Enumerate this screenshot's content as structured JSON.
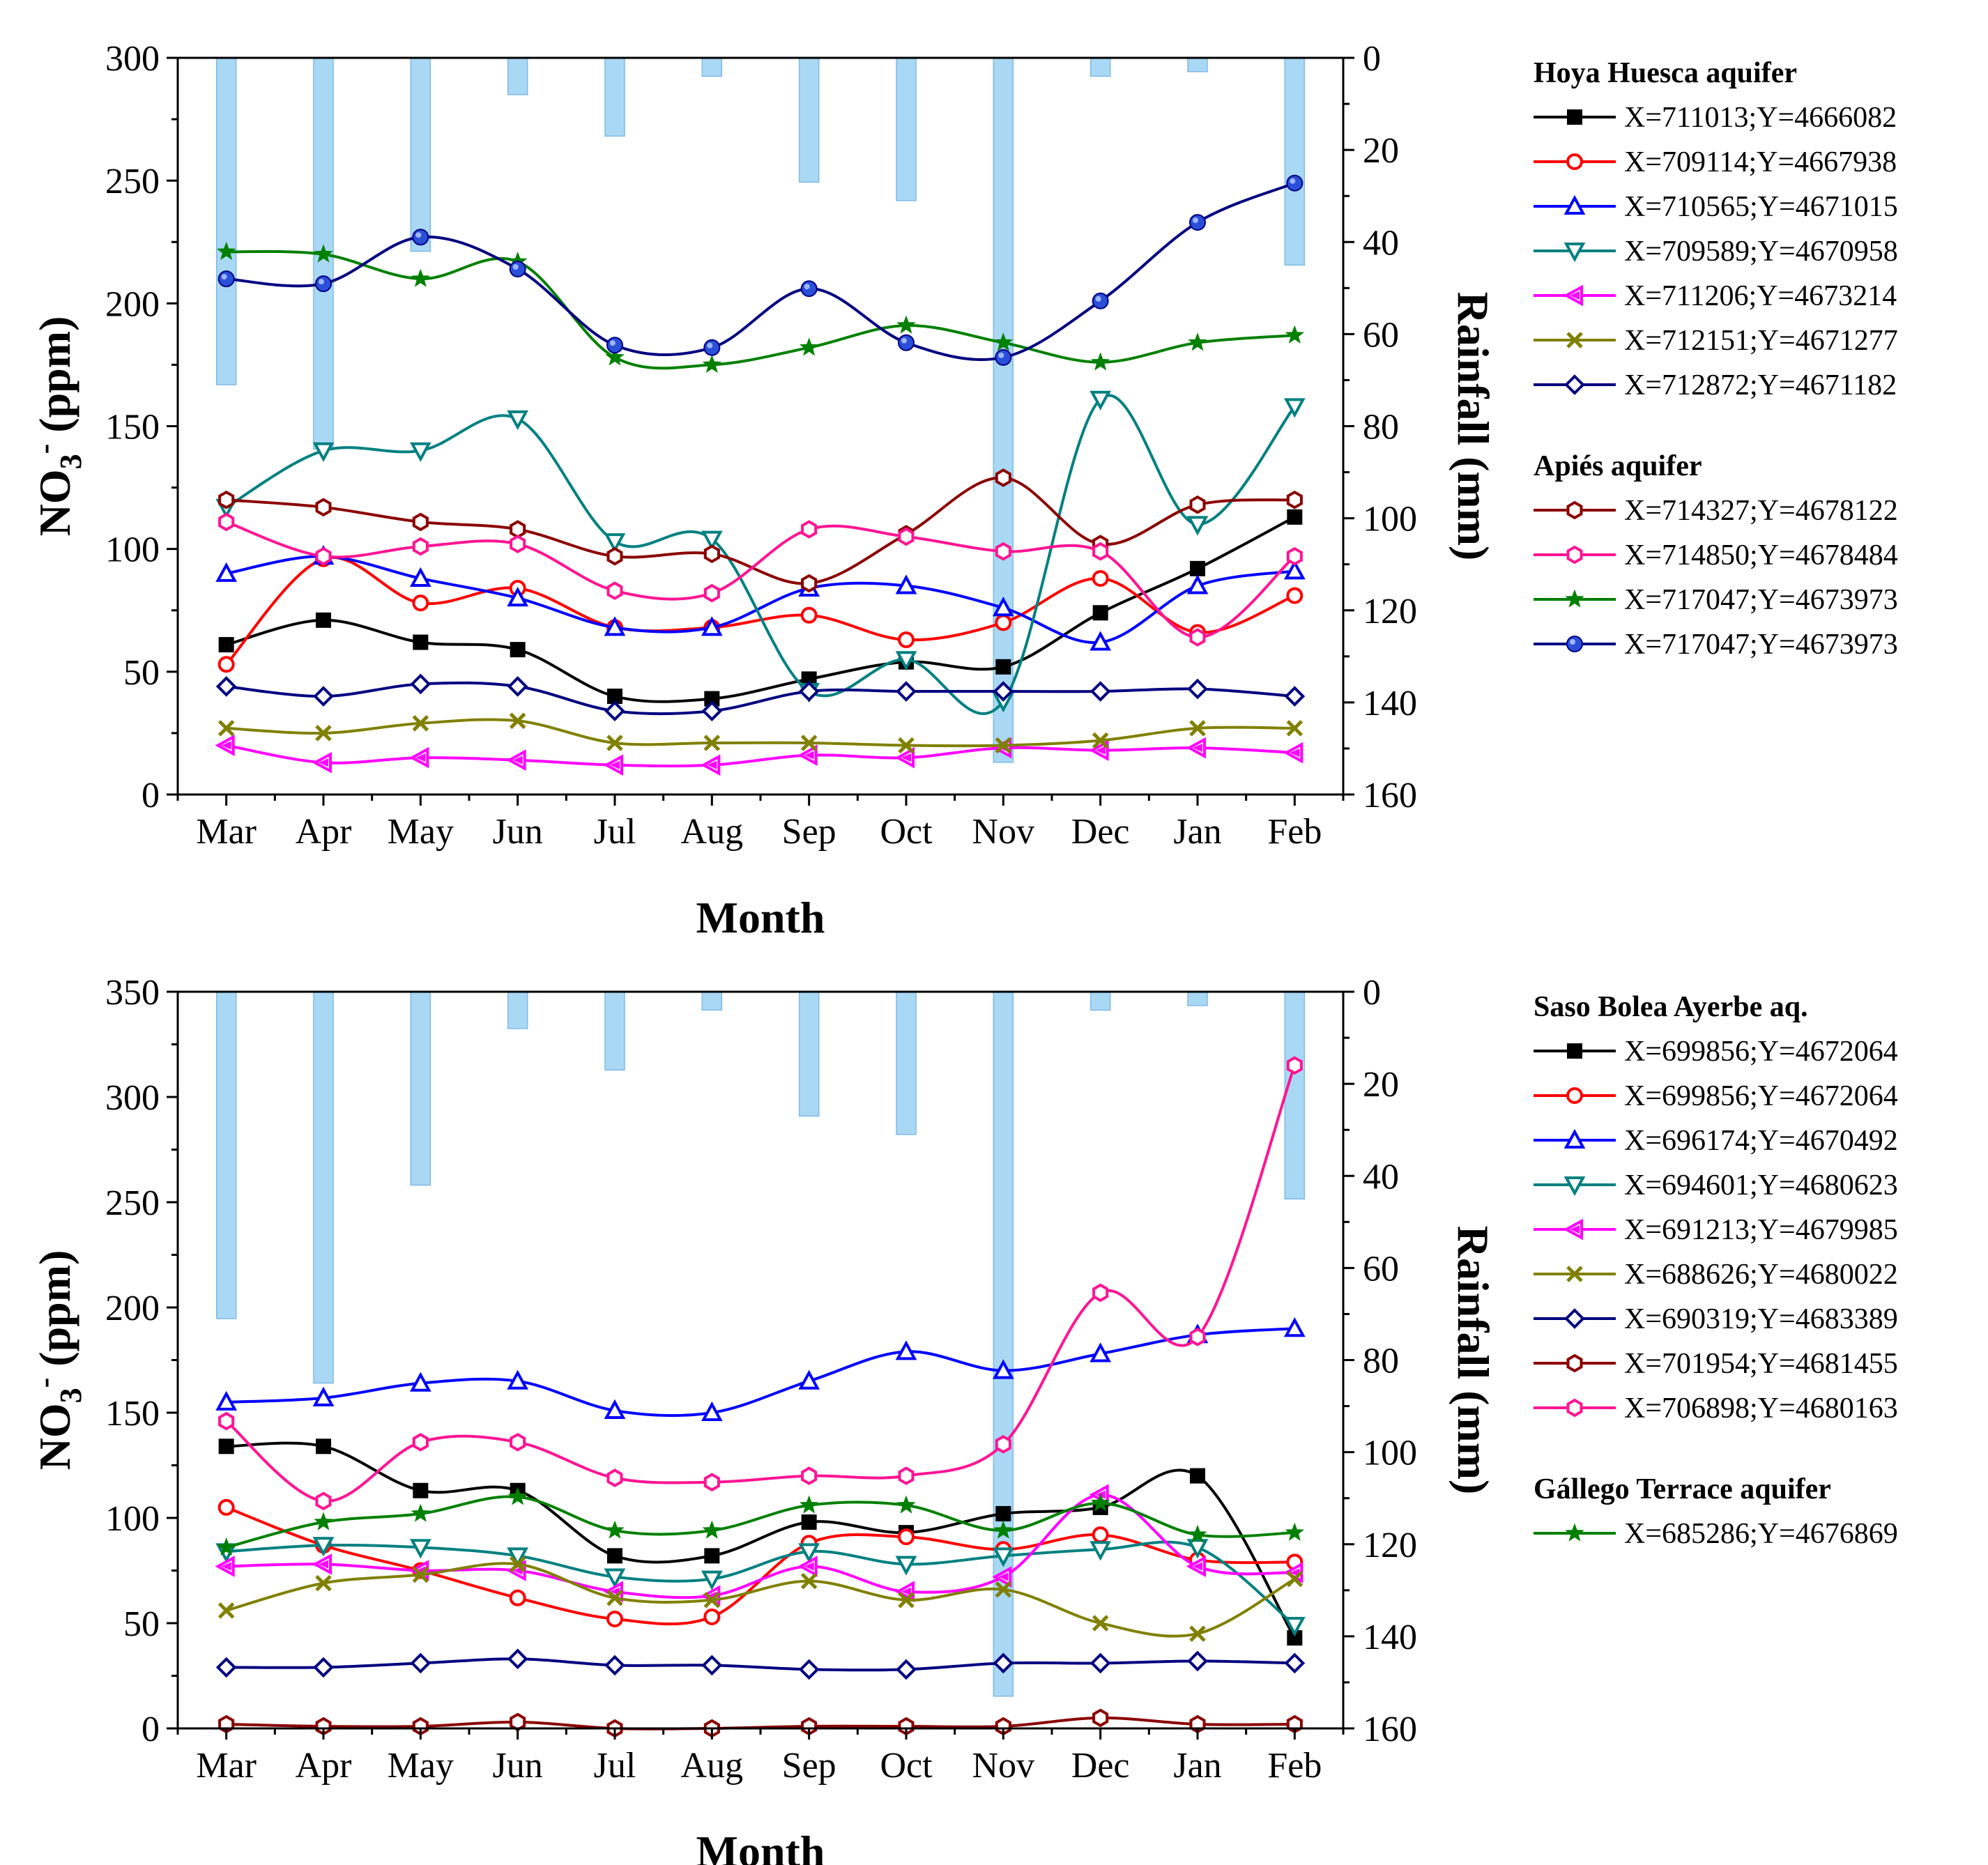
{
  "chart_data": [
    {
      "type": "line",
      "title": "",
      "xlabel": "Month",
      "ylabel": "NO3- (ppm)",
      "ylabel_main": "NO",
      "ylabel_sub": "3",
      "ylabel_sup": "-",
      "ylabel_unit": " (ppm)",
      "y2label": "Rainfall (mm)",
      "categories": [
        "Mar",
        "Apr",
        "May",
        "Jun",
        "Jul",
        "Aug",
        "Sep",
        "Oct",
        "Nov",
        "Dec",
        "Jan",
        "Feb"
      ],
      "ylim": [
        0,
        300
      ],
      "yticks": [
        0,
        50,
        100,
        150,
        200,
        250,
        300
      ],
      "y2lim": [
        0,
        160
      ],
      "y2ticks": [
        0,
        20,
        40,
        60,
        80,
        100,
        120,
        140,
        160
      ],
      "rainfall": [
        71,
        85,
        42,
        8,
        17,
        4,
        27,
        31,
        153,
        4,
        3,
        45
      ],
      "rainfall_color": "#a9d8f5",
      "groups": [
        {
          "title": "Hoya Huesca aquifer",
          "series": [
            {
              "name": "X=711013;Y=4666082",
              "color": "#000000",
              "marker": "square-filled",
              "values": [
                61,
                71,
                62,
                59,
                40,
                39,
                47,
                54,
                52,
                74,
                92,
                113
              ]
            },
            {
              "name": "X=709114;Y=4667938",
              "color": "#ff0000",
              "marker": "circle-open",
              "values": [
                53,
                96,
                78,
                84,
                68,
                68,
                73,
                63,
                70,
                88,
                66,
                81
              ]
            },
            {
              "name": "X=710565;Y=4671015",
              "color": "#0000ff",
              "marker": "triangle-up-open",
              "values": [
                90,
                97,
                88,
                80,
                68,
                68,
                84,
                85,
                76,
                62,
                85,
                91
              ]
            },
            {
              "name": "X=709589;Y=4670958",
              "color": "#008080",
              "marker": "triangle-down-open",
              "values": [
                117,
                140,
                140,
                153,
                103,
                104,
                42,
                55,
                38,
                161,
                110,
                158
              ]
            },
            {
              "name": "X=711206;Y=4673214",
              "color": "#ff00ff",
              "marker": "triangle-left",
              "values": [
                20,
                13,
                15,
                14,
                12,
                12,
                16,
                15,
                19,
                18,
                19,
                17
              ]
            },
            {
              "name": "X=712151;Y=4671277",
              "color": "#808000",
              "marker": "x",
              "values": [
                27,
                25,
                29,
                30,
                21,
                21,
                21,
                20,
                20,
                22,
                27,
                27
              ]
            },
            {
              "name": "X=712872;Y=4671182",
              "color": "#000080",
              "marker": "diamond-open",
              "values": [
                44,
                40,
                45,
                44,
                34,
                34,
                42,
                42,
                42,
                42,
                43,
                40
              ]
            }
          ]
        },
        {
          "title": "Apiés aquifer",
          "series": [
            {
              "name": "X=714327;Y=4678122",
              "color": "#8b0000",
              "marker": "hexagon-open",
              "values": [
                120,
                117,
                111,
                108,
                97,
                98,
                86,
                106,
                129,
                102,
                118,
                120
              ]
            },
            {
              "name": "X=714850;Y=4678484",
              "color": "#ff1493",
              "marker": "hexagon-open",
              "values": [
                111,
                97,
                101,
                102,
                83,
                82,
                108,
                105,
                99,
                99,
                64,
                97
              ]
            },
            {
              "name": "X=717047;Y=4673973",
              "color": "#008000",
              "marker": "star",
              "values": [
                221,
                220,
                210,
                217,
                178,
                175,
                182,
                191,
                184,
                176,
                184,
                187
              ]
            },
            {
              "name": "X=717047;Y=4673973",
              "color": "#000080",
              "marker": "sphere",
              "values": [
                210,
                208,
                227,
                214,
                183,
                182,
                206,
                184,
                178,
                201,
                233,
                249
              ]
            }
          ]
        }
      ]
    },
    {
      "type": "line",
      "title": "",
      "xlabel": "Month",
      "ylabel": "NO3- (ppm)",
      "ylabel_main": "NO",
      "ylabel_sub": "3",
      "ylabel_sup": "-",
      "ylabel_unit": " (ppm)",
      "y2label": "Rainfall (mm)",
      "categories": [
        "Mar",
        "Apr",
        "May",
        "Jun",
        "Jul",
        "Aug",
        "Sep",
        "Oct",
        "Nov",
        "Dec",
        "Jan",
        "Feb"
      ],
      "ylim": [
        0,
        350
      ],
      "yticks": [
        0,
        50,
        100,
        150,
        200,
        250,
        300,
        350
      ],
      "y2lim": [
        0,
        160
      ],
      "y2ticks": [
        0,
        20,
        40,
        60,
        80,
        100,
        120,
        140,
        160
      ],
      "rainfall": [
        71,
        85,
        42,
        8,
        17,
        4,
        27,
        31,
        153,
        4,
        3,
        45
      ],
      "rainfall_color": "#a9d8f5",
      "groups": [
        {
          "title": "Saso Bolea Ayerbe aq.",
          "series": [
            {
              "name": "X=699856;Y=4672064",
              "color": "#000000",
              "marker": "square-filled",
              "values": [
                134,
                134,
                113,
                113,
                82,
                82,
                98,
                93,
                102,
                105,
                120,
                43
              ]
            },
            {
              "name": "X=699856;Y=4672064",
              "color": "#ff0000",
              "marker": "circle-open",
              "values": [
                105,
                87,
                75,
                62,
                52,
                53,
                88,
                91,
                85,
                92,
                80,
                79
              ]
            },
            {
              "name": "X=696174;Y=4670492",
              "color": "#0000ff",
              "marker": "triangle-up-open",
              "values": [
                155,
                157,
                164,
                165,
                151,
                150,
                165,
                179,
                170,
                178,
                187,
                190
              ]
            },
            {
              "name": "X=694601;Y=4680623",
              "color": "#008080",
              "marker": "triangle-down-open",
              "values": [
                84,
                87,
                86,
                82,
                72,
                71,
                84,
                78,
                82,
                85,
                86,
                49
              ]
            },
            {
              "name": "X=691213;Y=4679985",
              "color": "#ff00ff",
              "marker": "triangle-left",
              "values": [
                77,
                78,
                75,
                75,
                65,
                63,
                77,
                65,
                72,
                111,
                77,
                74
              ]
            },
            {
              "name": "X=688626;Y=4680022",
              "color": "#808000",
              "marker": "x",
              "values": [
                56,
                69,
                73,
                78,
                62,
                61,
                70,
                61,
                66,
                50,
                45,
                71
              ]
            },
            {
              "name": "X=690319;Y=4683389",
              "color": "#000080",
              "marker": "diamond-open",
              "values": [
                29,
                29,
                31,
                33,
                30,
                30,
                28,
                28,
                31,
                31,
                32,
                31
              ]
            },
            {
              "name": "X=701954;Y=4681455",
              "color": "#8b0000",
              "marker": "hexagon-open",
              "values": [
                2,
                1,
                1,
                3,
                0,
                0,
                1,
                1,
                1,
                5,
                2,
                2
              ]
            },
            {
              "name": "X=706898;Y=4680163",
              "color": "#ff1493",
              "marker": "hexagon-open",
              "values": [
                146,
                108,
                136,
                136,
                119,
                117,
                120,
                120,
                135,
                207,
                186,
                315
              ]
            }
          ]
        },
        {
          "title": "Gállego Terrace aquifer",
          "series": [
            {
              "name": "X=685286;Y=4676869",
              "color": "#008000",
              "marker": "star",
              "values": [
                86,
                98,
                102,
                110,
                94,
                94,
                106,
                106,
                94,
                107,
                92,
                93
              ]
            }
          ]
        }
      ]
    }
  ]
}
